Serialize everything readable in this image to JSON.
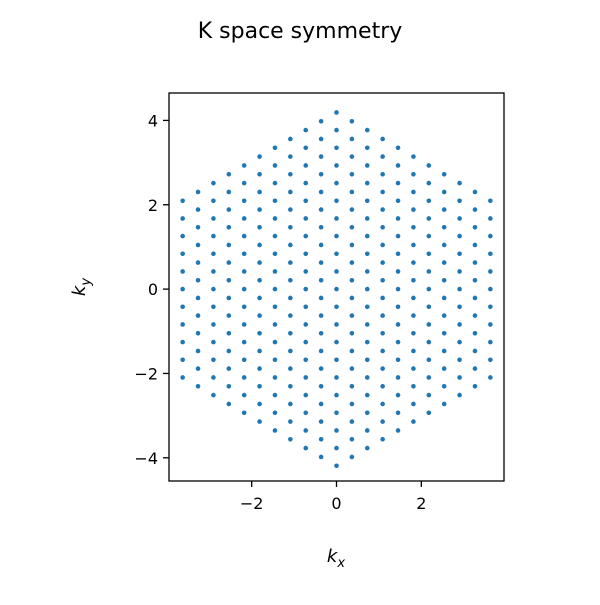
{
  "chart_data": {
    "type": "scatter",
    "title": "K space symmetry",
    "xlabel": "k",
    "xlabel_sub": "x",
    "ylabel": "k",
    "ylabel_sub": "y",
    "xlim": [
      -3.95,
      3.95
    ],
    "ylim": [
      -4.55,
      4.65
    ],
    "xticks": [
      -2,
      0,
      2
    ],
    "yticks": [
      -4,
      -2,
      0,
      2,
      4
    ],
    "tick_labels_x": [
      "−2",
      "0",
      "2"
    ],
    "tick_labels_y": [
      "−4",
      "−2",
      "0",
      "2",
      "4"
    ],
    "grid": false,
    "legend": "none",
    "marker_color": "#1f77b4",
    "lattice": {
      "description_of_points": "triangular reciprocal lattice truncated to a hexagonal region",
      "column_spacing_kx": 0.3628,
      "row_spacing_ky": 0.4189,
      "column_indices": [
        -10,
        10
      ],
      "hexagon_circumradius": 4.19,
      "vertices": [
        [
          0,
          4.19
        ],
        [
          3.63,
          2.095
        ],
        [
          3.63,
          -2.095
        ],
        [
          0,
          -4.19
        ],
        [
          -3.63,
          -2.095
        ],
        [
          -3.63,
          2.095
        ]
      ]
    }
  }
}
